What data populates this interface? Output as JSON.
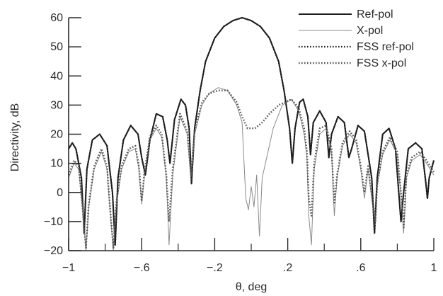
{
  "chart_data": {
    "type": "line",
    "title": "",
    "xlabel": "θ, deg",
    "ylabel": "Directivity, dB",
    "xlim": [
      -1,
      1
    ],
    "ylim": [
      -20,
      60
    ],
    "grid": false,
    "legend_position": "top-right",
    "xticks": [
      -1,
      -0.6,
      -0.2,
      0.2,
      0.6,
      1
    ],
    "xtick_labels": [
      "−1",
      "−.6",
      "−.2",
      ".2",
      ".6",
      "1"
    ],
    "xminor_ticks": [
      -0.8,
      -0.4,
      0,
      0.4,
      0.8
    ],
    "yticks": [
      -20,
      -10,
      0,
      10,
      20,
      30,
      40,
      50,
      60
    ],
    "ytick_labels": [
      "−20",
      "−10",
      "0",
      "10",
      "20",
      "30",
      "40",
      "50",
      "60"
    ],
    "series": [
      {
        "name": "Ref-pol",
        "color": "#1e1e1e",
        "style": "solid",
        "width": 2,
        "points": [
          [
            -1,
            15
          ],
          [
            -0.98,
            17
          ],
          [
            -0.96,
            15
          ],
          [
            -0.93,
            5
          ],
          [
            -0.915,
            -14
          ],
          [
            -0.9,
            8
          ],
          [
            -0.87,
            18
          ],
          [
            -0.83,
            20
          ],
          [
            -0.79,
            16
          ],
          [
            -0.76,
            0
          ],
          [
            -0.745,
            -18
          ],
          [
            -0.73,
            5
          ],
          [
            -0.7,
            18
          ],
          [
            -0.66,
            23
          ],
          [
            -0.62,
            20
          ],
          [
            -0.6,
            12
          ],
          [
            -0.58,
            6
          ],
          [
            -0.555,
            18
          ],
          [
            -0.52,
            27
          ],
          [
            -0.485,
            26
          ],
          [
            -0.46,
            18
          ],
          [
            -0.445,
            10
          ],
          [
            -0.42,
            25
          ],
          [
            -0.385,
            32
          ],
          [
            -0.36,
            30
          ],
          [
            -0.34,
            22
          ],
          [
            -0.327,
            3
          ],
          [
            -0.31,
            22
          ],
          [
            -0.28,
            35
          ],
          [
            -0.25,
            45
          ],
          [
            -0.2,
            53
          ],
          [
            -0.15,
            57
          ],
          [
            -0.1,
            59
          ],
          [
            -0.05,
            60
          ],
          [
            0,
            59
          ],
          [
            0.05,
            57
          ],
          [
            0.1,
            53
          ],
          [
            0.15,
            45
          ],
          [
            0.18,
            35
          ],
          [
            0.21,
            22
          ],
          [
            0.225,
            10
          ],
          [
            0.24,
            22
          ],
          [
            0.265,
            31
          ],
          [
            0.285,
            32
          ],
          [
            0.31,
            26
          ],
          [
            0.325,
            13
          ],
          [
            0.34,
            24
          ],
          [
            0.375,
            28
          ],
          [
            0.41,
            24
          ],
          [
            0.425,
            12
          ],
          [
            0.44,
            20
          ],
          [
            0.475,
            26
          ],
          [
            0.51,
            24
          ],
          [
            0.535,
            12
          ],
          [
            0.55,
            15
          ],
          [
            0.585,
            23
          ],
          [
            0.62,
            21
          ],
          [
            0.66,
            5
          ],
          [
            0.675,
            -14
          ],
          [
            0.69,
            5
          ],
          [
            0.72,
            20
          ],
          [
            0.755,
            22
          ],
          [
            0.79,
            15
          ],
          [
            0.82,
            -10
          ],
          [
            0.835,
            0
          ],
          [
            0.86,
            15
          ],
          [
            0.9,
            17
          ],
          [
            0.935,
            15
          ],
          [
            0.955,
            4
          ],
          [
            0.965,
            -2
          ],
          [
            0.975,
            5
          ],
          [
            1,
            11
          ]
        ]
      },
      {
        "name": "X-pol",
        "color": "#8a8a8a",
        "style": "solid",
        "width": 1,
        "points": [
          [
            -1,
            5
          ],
          [
            -0.97,
            10
          ],
          [
            -0.945,
            8
          ],
          [
            -0.925,
            -5
          ],
          [
            -0.905,
            -20
          ],
          [
            -0.89,
            -5
          ],
          [
            -0.86,
            8
          ],
          [
            -0.82,
            14
          ],
          [
            -0.79,
            8
          ],
          [
            -0.775,
            -5
          ],
          [
            -0.755,
            -20
          ],
          [
            -0.74,
            -5
          ],
          [
            -0.71,
            8
          ],
          [
            -0.67,
            14
          ],
          [
            -0.635,
            15
          ],
          [
            -0.615,
            8
          ],
          [
            -0.6,
            -4
          ],
          [
            -0.585,
            6
          ],
          [
            -0.555,
            18
          ],
          [
            -0.52,
            22
          ],
          [
            -0.49,
            19
          ],
          [
            -0.465,
            5
          ],
          [
            -0.45,
            -18
          ],
          [
            -0.43,
            6
          ],
          [
            -0.39,
            26
          ],
          [
            -0.35,
            20
          ],
          [
            -0.33,
            4
          ],
          [
            -0.31,
            20
          ],
          [
            -0.27,
            30
          ],
          [
            -0.23,
            34
          ],
          [
            -0.18,
            36
          ],
          [
            -0.13,
            35
          ],
          [
            -0.08,
            30
          ],
          [
            -0.05,
            24
          ],
          [
            -0.03,
            -2
          ],
          [
            -0.015,
            -6
          ],
          [
            0,
            2
          ],
          [
            0.015,
            -5
          ],
          [
            0.03,
            6
          ],
          [
            0.045,
            -15
          ],
          [
            0.06,
            5
          ],
          [
            0.085,
            12
          ],
          [
            0.12,
            22
          ],
          [
            0.17,
            30
          ],
          [
            0.22,
            32
          ],
          [
            0.26,
            28
          ],
          [
            0.29,
            20
          ],
          [
            0.305,
            12
          ],
          [
            0.315,
            -8
          ],
          [
            0.33,
            -18
          ],
          [
            0.345,
            8
          ],
          [
            0.375,
            20
          ],
          [
            0.41,
            22
          ],
          [
            0.44,
            14
          ],
          [
            0.455,
            -8
          ],
          [
            0.47,
            5
          ],
          [
            0.5,
            16
          ],
          [
            0.54,
            20
          ],
          [
            0.575,
            17
          ],
          [
            0.6,
            8
          ],
          [
            0.62,
            -2
          ],
          [
            0.64,
            8
          ],
          [
            0.68,
            -12
          ],
          [
            0.69,
            2
          ],
          [
            0.72,
            13
          ],
          [
            0.76,
            18
          ],
          [
            0.8,
            13
          ],
          [
            0.825,
            -5
          ],
          [
            0.835,
            -14
          ],
          [
            0.85,
            5
          ],
          [
            0.88,
            11
          ],
          [
            0.925,
            13
          ],
          [
            0.96,
            10
          ],
          [
            1,
            6
          ]
        ]
      },
      {
        "name": "FSS ref-pol",
        "color": "#1e1e1e",
        "style": "dotted",
        "width": 2.2,
        "points": [
          [
            -1,
            15
          ],
          [
            -0.98,
            17
          ],
          [
            -0.96,
            15
          ],
          [
            -0.93,
            5
          ],
          [
            -0.915,
            -14
          ],
          [
            -0.9,
            8
          ],
          [
            -0.87,
            18
          ],
          [
            -0.83,
            20
          ],
          [
            -0.79,
            16
          ],
          [
            -0.76,
            0
          ],
          [
            -0.745,
            -18
          ],
          [
            -0.73,
            5
          ],
          [
            -0.7,
            18
          ],
          [
            -0.66,
            23
          ],
          [
            -0.62,
            20
          ],
          [
            -0.6,
            12
          ],
          [
            -0.58,
            6
          ],
          [
            -0.555,
            18
          ],
          [
            -0.52,
            27
          ],
          [
            -0.485,
            26
          ],
          [
            -0.46,
            18
          ],
          [
            -0.445,
            10
          ],
          [
            -0.42,
            25
          ],
          [
            -0.385,
            32
          ],
          [
            -0.36,
            30
          ],
          [
            -0.34,
            22
          ],
          [
            -0.327,
            3
          ],
          [
            -0.31,
            22
          ],
          [
            -0.28,
            35
          ],
          [
            -0.25,
            45
          ],
          [
            -0.2,
            53
          ],
          [
            -0.15,
            57
          ],
          [
            -0.1,
            59
          ],
          [
            -0.05,
            60
          ],
          [
            0,
            59
          ],
          [
            0.05,
            57
          ],
          [
            0.1,
            53
          ],
          [
            0.15,
            45
          ],
          [
            0.18,
            35
          ],
          [
            0.21,
            22
          ],
          [
            0.225,
            10
          ],
          [
            0.24,
            22
          ],
          [
            0.265,
            31
          ],
          [
            0.285,
            32
          ],
          [
            0.31,
            26
          ],
          [
            0.325,
            13
          ],
          [
            0.34,
            24
          ],
          [
            0.375,
            28
          ],
          [
            0.41,
            24
          ],
          [
            0.425,
            12
          ],
          [
            0.44,
            20
          ],
          [
            0.475,
            26
          ],
          [
            0.51,
            24
          ],
          [
            0.535,
            12
          ],
          [
            0.55,
            15
          ],
          [
            0.585,
            23
          ],
          [
            0.62,
            21
          ],
          [
            0.66,
            5
          ],
          [
            0.675,
            -14
          ],
          [
            0.69,
            5
          ],
          [
            0.72,
            20
          ],
          [
            0.755,
            22
          ],
          [
            0.79,
            15
          ],
          [
            0.82,
            -10
          ],
          [
            0.835,
            0
          ],
          [
            0.86,
            15
          ],
          [
            0.9,
            17
          ],
          [
            0.935,
            15
          ],
          [
            0.955,
            4
          ],
          [
            0.965,
            -2
          ],
          [
            0.975,
            5
          ],
          [
            1,
            11
          ]
        ]
      },
      {
        "name": "FSS x-pol",
        "color": "#555555",
        "style": "dotted",
        "width": 2.5,
        "points": [
          [
            -1,
            6
          ],
          [
            -0.97,
            11
          ],
          [
            -0.945,
            9
          ],
          [
            -0.925,
            -4
          ],
          [
            -0.905,
            -19
          ],
          [
            -0.89,
            -4
          ],
          [
            -0.86,
            9
          ],
          [
            -0.82,
            15
          ],
          [
            -0.79,
            9
          ],
          [
            -0.775,
            -4
          ],
          [
            -0.755,
            -19
          ],
          [
            -0.74,
            -4
          ],
          [
            -0.71,
            9
          ],
          [
            -0.67,
            15
          ],
          [
            -0.635,
            16
          ],
          [
            -0.615,
            9
          ],
          [
            -0.6,
            -3
          ],
          [
            -0.585,
            7
          ],
          [
            -0.555,
            19
          ],
          [
            -0.52,
            23
          ],
          [
            -0.49,
            20
          ],
          [
            -0.465,
            6
          ],
          [
            -0.45,
            -10
          ],
          [
            -0.43,
            8
          ],
          [
            -0.39,
            27
          ],
          [
            -0.35,
            21
          ],
          [
            -0.33,
            6
          ],
          [
            -0.31,
            21
          ],
          [
            -0.27,
            31
          ],
          [
            -0.23,
            34
          ],
          [
            -0.18,
            35
          ],
          [
            -0.13,
            35
          ],
          [
            -0.08,
            31
          ],
          [
            -0.05,
            26
          ],
          [
            -0.02,
            22
          ],
          [
            0.02,
            22
          ],
          [
            0.06,
            24
          ],
          [
            0.1,
            27
          ],
          [
            0.15,
            30
          ],
          [
            0.22,
            32
          ],
          [
            0.26,
            29
          ],
          [
            0.29,
            22
          ],
          [
            0.305,
            14
          ],
          [
            0.315,
            -2
          ],
          [
            0.33,
            -8
          ],
          [
            0.345,
            10
          ],
          [
            0.375,
            22
          ],
          [
            0.41,
            23
          ],
          [
            0.44,
            15
          ],
          [
            0.455,
            -4
          ],
          [
            0.47,
            6
          ],
          [
            0.5,
            17
          ],
          [
            0.54,
            21
          ],
          [
            0.575,
            18
          ],
          [
            0.6,
            9
          ],
          [
            0.62,
            0
          ],
          [
            0.64,
            9
          ],
          [
            0.68,
            -10
          ],
          [
            0.69,
            3
          ],
          [
            0.72,
            14
          ],
          [
            0.76,
            19
          ],
          [
            0.8,
            14
          ],
          [
            0.825,
            -3
          ],
          [
            0.835,
            -12
          ],
          [
            0.85,
            6
          ],
          [
            0.88,
            12
          ],
          [
            0.925,
            14
          ],
          [
            0.96,
            11
          ],
          [
            1,
            7
          ]
        ]
      }
    ]
  }
}
